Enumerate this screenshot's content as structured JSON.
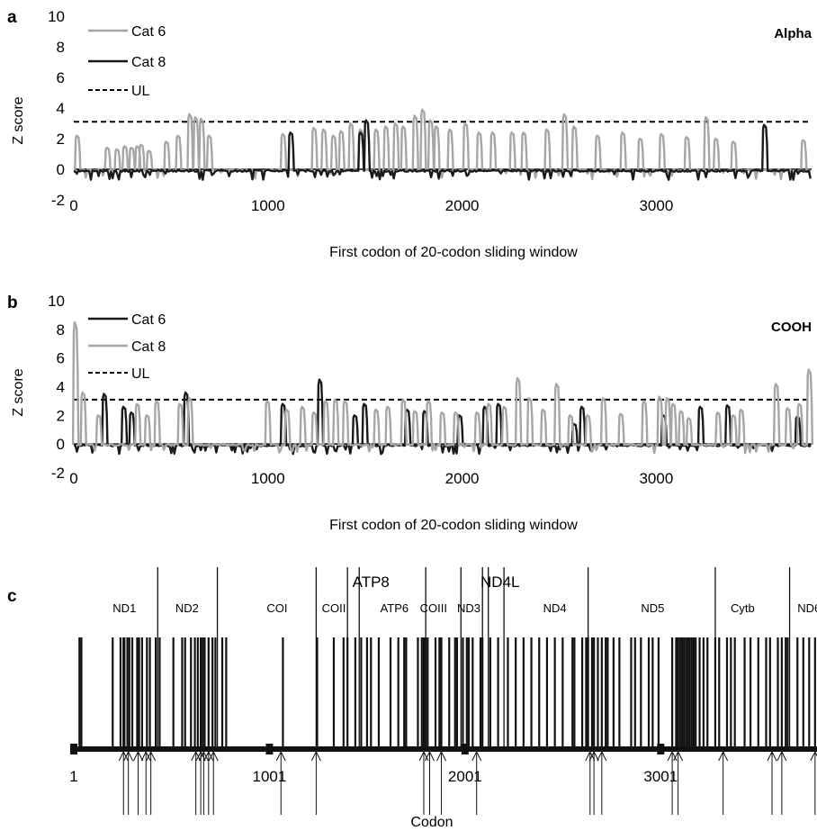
{
  "chart_data": [
    {
      "panel": "a",
      "type": "line",
      "corner_label": "Alpha",
      "xlabel": "First codon of 20-codon sliding window",
      "ylabel": "Z score",
      "xlim": [
        0,
        3800
      ],
      "ylim": [
        -2,
        10
      ],
      "xticks": [
        "0",
        "1000",
        "2000",
        "3000"
      ],
      "yticks": [
        "-2",
        "0",
        "2",
        "4",
        "6",
        "8",
        "10"
      ],
      "threshold": {
        "name": "UL",
        "value": 3.1,
        "style": "dashed"
      },
      "series": [
        {
          "name": "Cat 6",
          "color": "#a6a6a6",
          "baseline": -0.05,
          "peaks": [
            [
              20,
              2.2
            ],
            [
              175,
              1.4
            ],
            [
              225,
              1.3
            ],
            [
              265,
              1.5
            ],
            [
              300,
              1.4
            ],
            [
              330,
              1.5
            ],
            [
              350,
              1.6
            ],
            [
              390,
              1.2
            ],
            [
              480,
              1.8
            ],
            [
              540,
              2.2
            ],
            [
              600,
              3.6
            ],
            [
              630,
              3.4
            ],
            [
              660,
              3.3
            ],
            [
              700,
              2.2
            ],
            [
              1080,
              2.3
            ],
            [
              1240,
              2.7
            ],
            [
              1290,
              2.6
            ],
            [
              1340,
              2.2
            ],
            [
              1380,
              2.5
            ],
            [
              1430,
              3.0
            ],
            [
              1480,
              2.6
            ],
            [
              1560,
              2.6
            ],
            [
              1610,
              2.8
            ],
            [
              1660,
              3.0
            ],
            [
              1700,
              2.8
            ],
            [
              1760,
              3.5
            ],
            [
              1800,
              3.9
            ],
            [
              1840,
              3.2
            ],
            [
              1870,
              2.8
            ],
            [
              1940,
              2.6
            ],
            [
              2020,
              3.0
            ],
            [
              2090,
              2.4
            ],
            [
              2160,
              2.4
            ],
            [
              2260,
              2.4
            ],
            [
              2320,
              2.4
            ],
            [
              2440,
              2.6
            ],
            [
              2530,
              3.6
            ],
            [
              2580,
              2.8
            ],
            [
              2700,
              2.2
            ],
            [
              2830,
              2.4
            ],
            [
              2920,
              2.0
            ],
            [
              3030,
              2.3
            ],
            [
              3160,
              2.1
            ],
            [
              3260,
              3.4
            ],
            [
              3310,
              2.0
            ],
            [
              3400,
              1.8
            ],
            [
              3760,
              1.9
            ]
          ]
        },
        {
          "name": "Cat 8",
          "color": "#1a1a1a",
          "baseline": -0.1,
          "peaks": [
            [
              1120,
              2.4
            ],
            [
              1480,
              2.4
            ],
            [
              1510,
              3.2
            ],
            [
              3560,
              2.9
            ]
          ]
        }
      ]
    },
    {
      "panel": "b",
      "type": "line",
      "corner_label": "COOH",
      "xlabel": "First codon of 20-codon sliding window",
      "ylabel": "Z score",
      "xlim": [
        0,
        3800
      ],
      "ylim": [
        -2,
        10
      ],
      "xticks": [
        "0",
        "1000",
        "2000",
        "3000"
      ],
      "yticks": [
        "-2",
        "0",
        "2",
        "4",
        "6",
        "8",
        "10"
      ],
      "threshold": {
        "name": "UL",
        "value": 3.1,
        "style": "dashed"
      },
      "series": [
        {
          "name": "Cat 6",
          "color": "#1a1a1a",
          "baseline": -0.1,
          "peaks": [
            [
              160,
              3.5
            ],
            [
              260,
              2.6
            ],
            [
              300,
              2.2
            ],
            [
              580,
              3.6
            ],
            [
              1080,
              2.8
            ],
            [
              1270,
              4.5
            ],
            [
              1450,
              2.0
            ],
            [
              1500,
              2.8
            ],
            [
              1720,
              2.4
            ],
            [
              1810,
              2.3
            ],
            [
              1990,
              2.0
            ],
            [
              2120,
              2.6
            ],
            [
              2190,
              2.8
            ],
            [
              2580,
              1.4
            ],
            [
              2620,
              2.6
            ],
            [
              3040,
              2.0
            ],
            [
              3230,
              2.6
            ],
            [
              3370,
              2.7
            ],
            [
              3730,
              1.9
            ]
          ]
        },
        {
          "name": "Cat 8",
          "color": "#a6a6a6",
          "baseline": -0.05,
          "peaks": [
            [
              10,
              8.5
            ],
            [
              50,
              3.6
            ],
            [
              130,
              2.0
            ],
            [
              330,
              2.8
            ],
            [
              380,
              2.0
            ],
            [
              430,
              3.0
            ],
            [
              550,
              2.8
            ],
            [
              600,
              3.2
            ],
            [
              1000,
              3.0
            ],
            [
              1100,
              2.4
            ],
            [
              1180,
              2.6
            ],
            [
              1240,
              2.2
            ],
            [
              1300,
              3.0
            ],
            [
              1350,
              3.1
            ],
            [
              1400,
              3.0
            ],
            [
              1560,
              2.4
            ],
            [
              1620,
              2.6
            ],
            [
              1700,
              3.1
            ],
            [
              1760,
              2.3
            ],
            [
              1830,
              3.0
            ],
            [
              1900,
              2.2
            ],
            [
              1970,
              2.2
            ],
            [
              2080,
              2.2
            ],
            [
              2140,
              2.8
            ],
            [
              2220,
              2.6
            ],
            [
              2290,
              4.6
            ],
            [
              2350,
              3.2
            ],
            [
              2420,
              2.4
            ],
            [
              2490,
              4.2
            ],
            [
              2560,
              2.0
            ],
            [
              2650,
              2.0
            ],
            [
              2730,
              3.2
            ],
            [
              2820,
              2.1
            ],
            [
              2940,
              3.0
            ],
            [
              3020,
              3.3
            ],
            [
              3060,
              3.2
            ],
            [
              3090,
              2.8
            ],
            [
              3130,
              2.3
            ],
            [
              3170,
              1.8
            ],
            [
              3320,
              2.2
            ],
            [
              3400,
              2.0
            ],
            [
              3440,
              2.4
            ],
            [
              3620,
              4.2
            ],
            [
              3680,
              2.5
            ],
            [
              3740,
              2.8
            ],
            [
              3790,
              5.2
            ]
          ]
        }
      ]
    },
    {
      "panel": "c",
      "type": "gene-map",
      "xlabel": "Codon",
      "xlim": [
        1,
        3800
      ],
      "xticks": [
        {
          "value": 1,
          "label": "1"
        },
        {
          "value": 1001,
          "label": "1001"
        },
        {
          "value": 2001,
          "label": "2001"
        },
        {
          "value": 3001,
          "label": "3001"
        }
      ],
      "genes": [
        {
          "name": "ND1",
          "x": 260,
          "row": "small"
        },
        {
          "name": "ND2",
          "x": 580,
          "row": "small"
        },
        {
          "name": "COI",
          "x": 1040,
          "row": "small"
        },
        {
          "name": "COII",
          "x": 1330,
          "row": "small"
        },
        {
          "name": "ATP8",
          "x": 1520,
          "row": "big"
        },
        {
          "name": "ATP6",
          "x": 1640,
          "row": "small"
        },
        {
          "name": "COIII",
          "x": 1840,
          "row": "small"
        },
        {
          "name": "ND3",
          "x": 2020,
          "row": "small"
        },
        {
          "name": "ND4L",
          "x": 2180,
          "row": "big"
        },
        {
          "name": "ND4",
          "x": 2460,
          "row": "small"
        },
        {
          "name": "ND5",
          "x": 2960,
          "row": "small"
        },
        {
          "name": "Cytb",
          "x": 3420,
          "row": "small"
        },
        {
          "name": "ND6",
          "x": 3760,
          "row": "small"
        }
      ],
      "gene_boundaries": [
        430,
        735,
        1240,
        1400,
        1460,
        1800,
        1980,
        2090,
        2120,
        2200,
        2630,
        3280,
        3660
      ],
      "site_positions": [
        30,
        40,
        200,
        240,
        255,
        260,
        275,
        285,
        300,
        325,
        335,
        350,
        375,
        390,
        420,
        440,
        510,
        555,
        570,
        600,
        620,
        635,
        650,
        660,
        670,
        690,
        710,
        725,
        760,
        780,
        1070,
        1245,
        1330,
        1380,
        1400,
        1440,
        1470,
        1500,
        1520,
        1560,
        1620,
        1660,
        1690,
        1700,
        1760,
        1780,
        1790,
        1800,
        1810,
        1850,
        1870,
        1880,
        1920,
        1950,
        1960,
        1990,
        2010,
        2020,
        2040,
        2080,
        2090,
        2130,
        2170,
        2220,
        2260,
        2300,
        2340,
        2380,
        2420,
        2460,
        2500,
        2550,
        2560,
        2600,
        2620,
        2630,
        2650,
        2660,
        2680,
        2700,
        2720,
        2730,
        2760,
        2790,
        2850,
        2870,
        2900,
        2940,
        2960,
        2990,
        3060,
        3080,
        3090,
        3100,
        3110,
        3120,
        3130,
        3140,
        3150,
        3160,
        3170,
        3180,
        3200,
        3220,
        3240,
        3280,
        3300,
        3340,
        3360,
        3380,
        3430,
        3460,
        3500,
        3540,
        3560,
        3600,
        3620,
        3640,
        3650,
        3700,
        3730,
        3760,
        3790
      ],
      "arrow_positions": [
        255,
        280,
        330,
        370,
        395,
        625,
        650,
        665,
        690,
        715,
        1060,
        1240,
        1790,
        1820,
        1880,
        2060,
        2640,
        2660,
        2700,
        3060,
        3090,
        3320,
        3570,
        3620,
        3790
      ]
    }
  ]
}
